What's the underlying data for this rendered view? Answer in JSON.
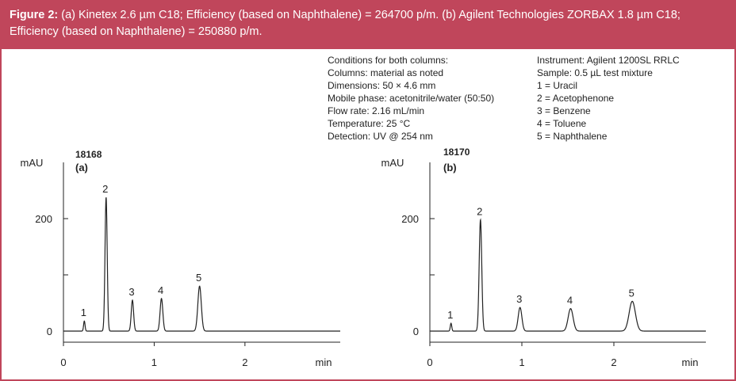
{
  "caption": {
    "label": "Figure 2:",
    "text": "(a) Kinetex 2.6 µm C18; Efficiency (based on Naphthalene) = 264700 p/m. (b) Agilent Technologies ZORBAX 1.8 µm C18; Efficiency (based on Naphthalene) = 250880 p/m."
  },
  "conditions_left": [
    "Conditions for both columns:",
    "Columns: material as noted",
    "Dimensions: 50 × 4.6 mm",
    "Mobile phase: acetonitrile/water (50:50)",
    "Flow rate: 2.16 mL/min",
    "Temperature: 25 °C",
    "Detection: UV @ 254 nm"
  ],
  "conditions_right": [
    "Instrument: Agilent 1200SL RRLC",
    "Sample: 0.5 µL test mixture",
    "1 = Uracil",
    "2 = Acetophenone",
    "3 = Benzene",
    "4 = Toluene",
    "5 = Naphthalene"
  ],
  "colors": {
    "accent": "#c0465b",
    "line": "#222222"
  },
  "chart_data": [
    {
      "type": "line",
      "id_label": "18168",
      "panel_label": "(a)",
      "ylabel": "mAU",
      "xlabel": "min",
      "xlim": [
        0,
        3.05
      ],
      "ylim": [
        -10,
        290
      ],
      "x_ticks": [
        0,
        1,
        2
      ],
      "y_ticks": [
        0,
        200
      ],
      "peaks": [
        {
          "label": "1",
          "rt": 0.23,
          "height": 18,
          "width": 0.008
        },
        {
          "label": "2",
          "rt": 0.47,
          "height": 238,
          "width": 0.012
        },
        {
          "label": "3",
          "rt": 0.76,
          "height": 55,
          "width": 0.013
        },
        {
          "label": "4",
          "rt": 1.08,
          "height": 58,
          "width": 0.015
        },
        {
          "label": "5",
          "rt": 1.5,
          "height": 80,
          "width": 0.019
        }
      ]
    },
    {
      "type": "line",
      "id_label": "18170",
      "panel_label": "(b)",
      "ylabel": "mAU",
      "xlabel": "min",
      "xlim": [
        0,
        3.0
      ],
      "ylim": [
        -10,
        290
      ],
      "x_ticks": [
        0,
        1,
        2
      ],
      "y_ticks": [
        0,
        200
      ],
      "peaks": [
        {
          "label": "1",
          "rt": 0.23,
          "height": 14,
          "width": 0.008
        },
        {
          "label": "2",
          "rt": 0.55,
          "height": 198,
          "width": 0.014
        },
        {
          "label": "3",
          "rt": 0.98,
          "height": 42,
          "width": 0.02
        },
        {
          "label": "4",
          "rt": 1.53,
          "height": 40,
          "width": 0.027
        },
        {
          "label": "5",
          "rt": 2.2,
          "height": 53,
          "width": 0.034
        }
      ]
    }
  ]
}
